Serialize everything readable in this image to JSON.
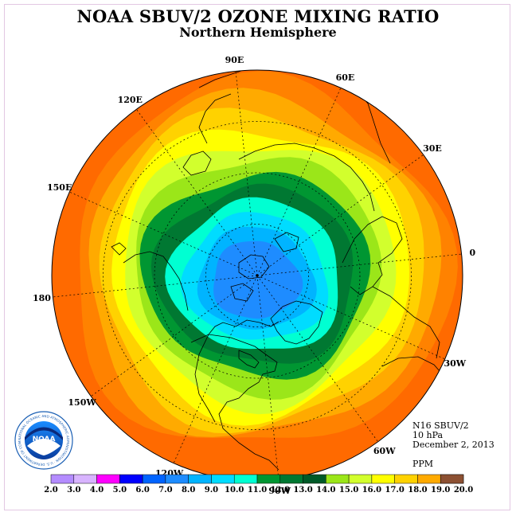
{
  "title": "NOAA SBUV/2 OZONE MIXING RATIO",
  "subtitle": "Northern Hemisphere",
  "longitude_labels": [
    {
      "text": "90E",
      "lon": 90
    },
    {
      "text": "60E",
      "lon": 60
    },
    {
      "text": "30E",
      "lon": 30
    },
    {
      "text": "0",
      "lon": 0
    },
    {
      "text": "30W",
      "lon": -30
    },
    {
      "text": "60W",
      "lon": -60
    },
    {
      "text": "90W",
      "lon": -90
    },
    {
      "text": "120W",
      "lon": -120
    },
    {
      "text": "150W",
      "lon": -150
    },
    {
      "text": "180",
      "lon": 180
    },
    {
      "text": "150E",
      "lon": 150
    },
    {
      "text": "120E",
      "lon": 120
    }
  ],
  "info": {
    "satellite": "N16 SBUV/2",
    "pressure": "10 hPa",
    "date": "December 2, 2013",
    "units": "PPM"
  },
  "logo": {
    "text": "NOAA",
    "ring_text": "NATIONAL OCEANIC AND ATMOSPHERIC ADMINISTRATION · U.S. DEPARTMENT OF COMMERCE"
  },
  "colorbar": {
    "ticks": [
      "2.0",
      "3.0",
      "4.0",
      "5.0",
      "6.0",
      "7.0",
      "8.0",
      "9.0",
      "10.0",
      "11.0",
      "12.0",
      "13.0",
      "14.0",
      "15.0",
      "16.0",
      "17.0",
      "18.0",
      "19.0",
      "20.0"
    ],
    "colors": [
      "#b48cff",
      "#d8b4ff",
      "#ff00ff",
      "#0000ff",
      "#0064ff",
      "#1e8cff",
      "#00b4ff",
      "#00dcff",
      "#00ffd2",
      "#009632",
      "#007832",
      "#005a28",
      "#9be619",
      "#d2ff2d",
      "#ffff00",
      "#ffd200",
      "#ffaa00",
      "#ff8200",
      "#ff4600",
      "#ff0000",
      "#8c5032"
    ]
  },
  "ozone_bands_ppm": [
    {
      "level": 20.0,
      "color": "#ff6a00"
    },
    {
      "level": 18.0,
      "color": "#ff8200"
    },
    {
      "level": 17.0,
      "color": "#ffaa00"
    },
    {
      "level": 16.0,
      "color": "#ffd200"
    },
    {
      "level": 15.0,
      "color": "#ffff00"
    },
    {
      "level": 14.0,
      "color": "#d2ff2d"
    },
    {
      "level": 13.0,
      "color": "#9be619"
    },
    {
      "level": 12.0,
      "color": "#009632"
    },
    {
      "level": 11.0,
      "color": "#007832"
    },
    {
      "level": 10.0,
      "color": "#00ffd2"
    },
    {
      "level": 9.0,
      "color": "#00dcff"
    },
    {
      "level": 8.0,
      "color": "#00b4ff"
    },
    {
      "level": 7.0,
      "color": "#1e8cff"
    }
  ]
}
